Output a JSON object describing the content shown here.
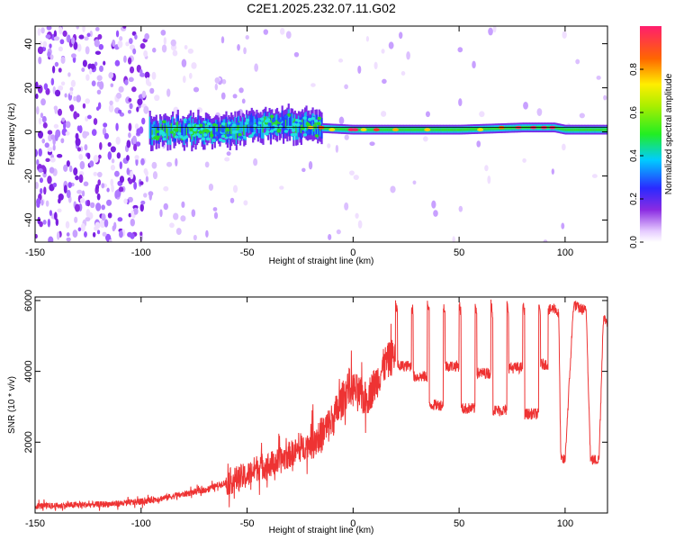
{
  "title": "C2E1.2025.232.07.11.G02",
  "chart_data": [
    {
      "type": "heatmap",
      "xlabel": "Height of straight line (km)",
      "ylabel": "Frequency (Hz)",
      "xlim": [
        -150,
        120
      ],
      "ylim": [
        -50,
        48
      ],
      "xticks": [
        -150,
        -100,
        -50,
        0,
        50,
        100
      ],
      "xtick_labels": [
        "-150",
        "-100",
        "-50",
        "0",
        "50",
        "100"
      ],
      "yticks": [
        -40,
        -20,
        0,
        20,
        40
      ],
      "ytick_labels": [
        "-40",
        "-20",
        "0",
        "20",
        "40"
      ],
      "reference_line_y": 2,
      "ridge": {
        "description_points_x": [
          -95,
          -80,
          -60,
          -45,
          -35,
          -20,
          0,
          50,
          80,
          95,
          100,
          120
        ],
        "description_points_y": [
          0,
          1,
          0,
          3,
          4,
          2,
          1,
          1,
          2,
          2,
          1,
          1
        ]
      },
      "colorbar": {
        "label": "Normalized spectral amplitude",
        "range": [
          0.0,
          1.0
        ],
        "ticks": [
          0.0,
          0.2,
          0.4,
          0.6,
          0.8
        ],
        "tick_labels": [
          "0.0",
          "0.2",
          "0.4",
          "0.6",
          "0.8"
        ]
      }
    },
    {
      "type": "line",
      "xlabel": "Height of straight line (km)",
      "ylabel": "SNR (10 * v/v)",
      "xlim": [
        -150,
        120
      ],
      "ylim": [
        0,
        6100
      ],
      "xticks": [
        -150,
        -100,
        -50,
        0,
        50,
        100
      ],
      "xtick_labels": [
        "-150",
        "-100",
        "-50",
        "0",
        "50",
        "100"
      ],
      "yticks": [
        2000,
        4000,
        6000
      ],
      "ytick_labels": [
        "2000",
        "4000",
        "6000"
      ],
      "color": "#ee3333",
      "series": [
        {
          "name": "SNR",
          "x": [
            -150,
            -140,
            -130,
            -120,
            -110,
            -100,
            -90,
            -80,
            -70,
            -60,
            -50,
            -45,
            -40,
            -35,
            -30,
            -25,
            -20,
            -15,
            -10,
            -5,
            -2,
            0,
            3,
            6,
            10,
            15,
            20
          ],
          "y": [
            200,
            200,
            230,
            240,
            270,
            320,
            420,
            530,
            650,
            860,
            1050,
            1300,
            1350,
            1450,
            1650,
            1800,
            2000,
            2200,
            2600,
            3200,
            3600,
            3500,
            3350,
            3200,
            3600,
            4200,
            4500
          ]
        }
      ],
      "plateaus": {
        "start": 20,
        "period": 7.5,
        "count": 10,
        "low_values": [
          4150,
          3850,
          3050,
          4150,
          2950,
          3950,
          2900,
          4100,
          2800,
          4200
        ],
        "spike_value": 5900
      },
      "late_segment": {
        "x": [
          92,
          95,
          97,
          98,
          100,
          104,
          106,
          110,
          112,
          116,
          118,
          120
        ],
        "y": [
          5700,
          5800,
          5600,
          1500,
          1500,
          5900,
          5800,
          5700,
          1500,
          1500,
          5500,
          5400
        ]
      }
    }
  ]
}
